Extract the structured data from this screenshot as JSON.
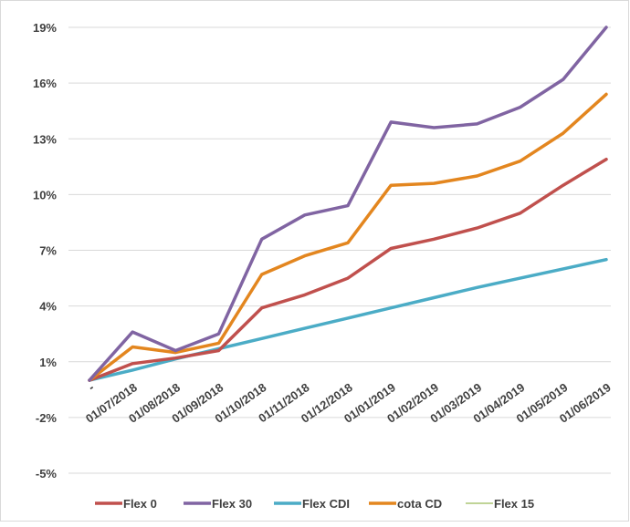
{
  "chart_data": {
    "type": "line",
    "categories": [
      "-",
      "01/07/2018",
      "01/08/2018",
      "01/09/2018",
      "01/10/2018",
      "01/11/2018",
      "01/12/2018",
      "01/01/2019",
      "01/02/2019",
      "01/03/2019",
      "01/04/2019",
      "01/05/2019",
      "01/06/2019"
    ],
    "y_ticks": [
      "19%",
      "16%",
      "13%",
      "10%",
      "7%",
      "4%",
      "1%",
      "-2%",
      "-5%"
    ],
    "y_tick_values": [
      19,
      16,
      13,
      10,
      7,
      4,
      1,
      -2,
      -5
    ],
    "ylim": [
      -5,
      19
    ],
    "grid": "horizontal",
    "legend_position": "bottom",
    "series": [
      {
        "name": "Flex 0",
        "color": "#c0504d",
        "values": [
          0.0,
          0.9,
          1.2,
          1.6,
          3.9,
          4.6,
          5.5,
          7.1,
          7.6,
          8.2,
          9.0,
          10.5,
          11.9
        ]
      },
      {
        "name": "Flex 30",
        "color": "#8064a2",
        "values": [
          0.0,
          2.6,
          1.6,
          2.5,
          7.6,
          8.9,
          9.4,
          13.9,
          13.6,
          13.8,
          14.7,
          16.2,
          19.0
        ]
      },
      {
        "name": "Flex CDI",
        "color": "#4bacc6",
        "values": [
          0.0,
          0.55,
          1.15,
          1.7,
          2.25,
          2.8,
          3.35,
          3.9,
          4.45,
          5.0,
          5.5,
          6.0,
          6.5
        ]
      },
      {
        "name": "cota CD",
        "color": "#e3861f",
        "values": [
          0.0,
          1.8,
          1.5,
          2.0,
          5.7,
          6.7,
          7.4,
          10.5,
          10.6,
          11.0,
          11.8,
          13.3,
          15.4
        ]
      },
      {
        "name": "Flex 15",
        "color": "#9bbb59",
        "values": [
          0.0,
          1.8,
          1.5,
          2.0,
          5.7,
          6.7,
          7.4,
          10.5,
          10.6,
          11.0,
          11.8,
          13.3,
          15.4
        ],
        "thin": true
      }
    ]
  }
}
